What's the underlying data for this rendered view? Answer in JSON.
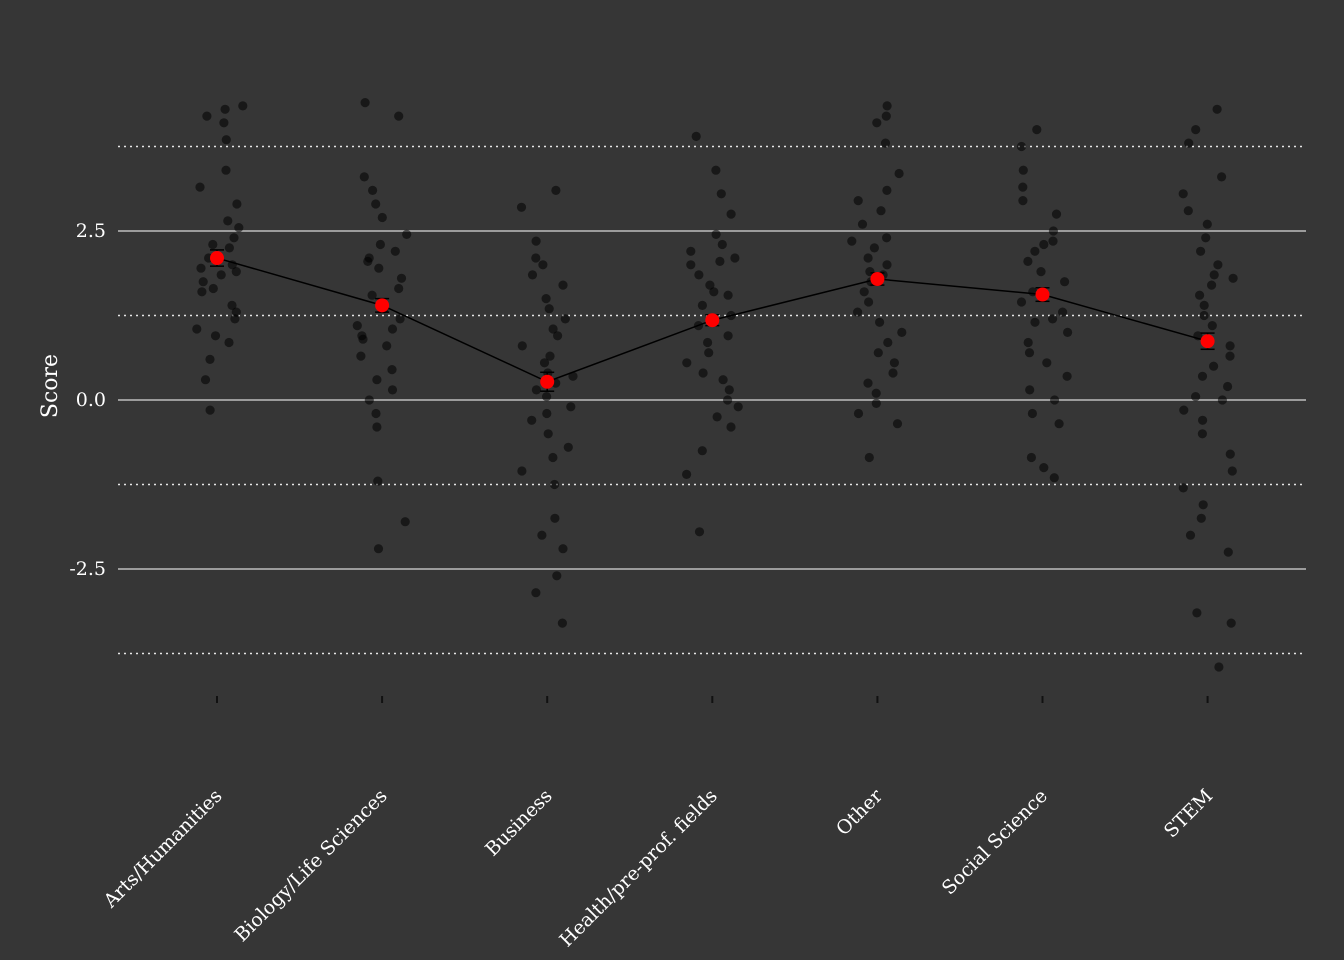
{
  "chart_data": {
    "type": "scatter",
    "title": "",
    "xlabel": "",
    "ylabel": "Score",
    "ylim": [
      -4.45,
      4.4
    ],
    "y_ticks": [
      -2.5,
      0.0,
      2.5
    ],
    "y_tick_labels": [
      "-2.5",
      "0.0",
      "2.5"
    ],
    "y_minor_gridlines": [
      -3.75,
      -1.25,
      1.25,
      3.75
    ],
    "grid": true,
    "legend": "none",
    "categories": [
      "Arts/Humanities",
      "Biology/Life Sciences",
      "Business",
      "Health/pre-prof. fields",
      "Other",
      "Social Science",
      "STEM"
    ],
    "series": [
      {
        "role": "mean",
        "values": [
          2.1,
          1.4,
          0.27,
          1.18,
          1.79,
          1.56,
          0.87
        ],
        "error": [
          0.12,
          0.1,
          0.14,
          0.08,
          0.09,
          0.1,
          0.12
        ]
      },
      {
        "role": "observations",
        "points": [
          [
            0,
            4.3
          ],
          [
            0,
            4.2
          ],
          [
            0,
            4.1
          ],
          [
            0,
            4.35
          ],
          [
            0,
            3.85
          ],
          [
            0,
            3.4
          ],
          [
            0,
            3.15
          ],
          [
            0,
            2.9
          ],
          [
            0,
            2.65
          ],
          [
            0,
            2.4
          ],
          [
            0,
            2.25
          ],
          [
            0,
            2.1
          ],
          [
            0,
            2.0
          ],
          [
            0,
            1.95
          ],
          [
            0,
            1.85
          ],
          [
            0,
            1.75
          ],
          [
            0,
            1.6
          ],
          [
            0,
            1.4
          ],
          [
            0,
            1.3
          ],
          [
            0,
            1.2
          ],
          [
            0,
            1.05
          ],
          [
            0,
            0.95
          ],
          [
            0,
            0.85
          ],
          [
            0,
            0.6
          ],
          [
            0,
            0.3
          ],
          [
            0,
            -0.15
          ],
          [
            0,
            2.55
          ],
          [
            0,
            1.9
          ],
          [
            0,
            2.3
          ],
          [
            0,
            1.65
          ],
          [
            1,
            4.2
          ],
          [
            1,
            4.4
          ],
          [
            1,
            3.3
          ],
          [
            1,
            3.1
          ],
          [
            1,
            2.9
          ],
          [
            1,
            2.7
          ],
          [
            1,
            2.45
          ],
          [
            1,
            2.3
          ],
          [
            1,
            2.2
          ],
          [
            1,
            2.05
          ],
          [
            1,
            1.95
          ],
          [
            1,
            1.8
          ],
          [
            1,
            1.65
          ],
          [
            1,
            1.55
          ],
          [
            1,
            1.35
          ],
          [
            1,
            1.2
          ],
          [
            1,
            1.05
          ],
          [
            1,
            0.95
          ],
          [
            1,
            0.8
          ],
          [
            1,
            0.65
          ],
          [
            1,
            0.45
          ],
          [
            1,
            0.3
          ],
          [
            1,
            0.15
          ],
          [
            1,
            0.0
          ],
          [
            1,
            -0.2
          ],
          [
            1,
            -0.4
          ],
          [
            1,
            -1.2
          ],
          [
            1,
            -1.8
          ],
          [
            1,
            -2.2
          ],
          [
            1,
            1.1
          ],
          [
            1,
            2.1
          ],
          [
            1,
            0.9
          ],
          [
            2,
            3.1
          ],
          [
            2,
            2.85
          ],
          [
            2,
            2.35
          ],
          [
            2,
            2.1
          ],
          [
            2,
            2.0
          ],
          [
            2,
            1.85
          ],
          [
            2,
            1.7
          ],
          [
            2,
            1.5
          ],
          [
            2,
            1.35
          ],
          [
            2,
            1.2
          ],
          [
            2,
            1.05
          ],
          [
            2,
            0.95
          ],
          [
            2,
            0.8
          ],
          [
            2,
            0.65
          ],
          [
            2,
            0.55
          ],
          [
            2,
            0.4
          ],
          [
            2,
            0.25
          ],
          [
            2,
            0.15
          ],
          [
            2,
            0.05
          ],
          [
            2,
            -0.1
          ],
          [
            2,
            -0.3
          ],
          [
            2,
            -0.5
          ],
          [
            2,
            -0.7
          ],
          [
            2,
            -0.85
          ],
          [
            2,
            -1.05
          ],
          [
            2,
            -1.25
          ],
          [
            2,
            -1.75
          ],
          [
            2,
            -2.0
          ],
          [
            2,
            -2.2
          ],
          [
            2,
            -2.6
          ],
          [
            2,
            -2.85
          ],
          [
            2,
            -3.3
          ],
          [
            2,
            0.35
          ],
          [
            2,
            -0.2
          ],
          [
            3,
            3.9
          ],
          [
            3,
            3.4
          ],
          [
            3,
            3.05
          ],
          [
            3,
            2.75
          ],
          [
            3,
            2.45
          ],
          [
            3,
            2.3
          ],
          [
            3,
            2.2
          ],
          [
            3,
            2.1
          ],
          [
            3,
            2.0
          ],
          [
            3,
            1.85
          ],
          [
            3,
            1.7
          ],
          [
            3,
            1.55
          ],
          [
            3,
            1.4
          ],
          [
            3,
            1.25
          ],
          [
            3,
            1.1
          ],
          [
            3,
            0.95
          ],
          [
            3,
            0.85
          ],
          [
            3,
            0.7
          ],
          [
            3,
            0.55
          ],
          [
            3,
            0.4
          ],
          [
            3,
            0.3
          ],
          [
            3,
            0.15
          ],
          [
            3,
            0.0
          ],
          [
            3,
            -0.1
          ],
          [
            3,
            -0.25
          ],
          [
            3,
            -0.4
          ],
          [
            3,
            -0.75
          ],
          [
            3,
            -1.1
          ],
          [
            3,
            -1.95
          ],
          [
            3,
            1.6
          ],
          [
            3,
            2.05
          ],
          [
            4,
            4.35
          ],
          [
            4,
            4.2
          ],
          [
            4,
            4.1
          ],
          [
            4,
            3.8
          ],
          [
            4,
            3.35
          ],
          [
            4,
            3.1
          ],
          [
            4,
            2.95
          ],
          [
            4,
            2.8
          ],
          [
            4,
            2.6
          ],
          [
            4,
            2.4
          ],
          [
            4,
            2.25
          ],
          [
            4,
            2.1
          ],
          [
            4,
            2.0
          ],
          [
            4,
            1.9
          ],
          [
            4,
            1.75
          ],
          [
            4,
            1.6
          ],
          [
            4,
            1.45
          ],
          [
            4,
            1.3
          ],
          [
            4,
            1.15
          ],
          [
            4,
            1.0
          ],
          [
            4,
            0.85
          ],
          [
            4,
            0.7
          ],
          [
            4,
            0.55
          ],
          [
            4,
            0.4
          ],
          [
            4,
            0.25
          ],
          [
            4,
            0.1
          ],
          [
            4,
            -0.05
          ],
          [
            4,
            -0.2
          ],
          [
            4,
            -0.35
          ],
          [
            4,
            -0.85
          ],
          [
            4,
            2.35
          ],
          [
            4,
            1.85
          ],
          [
            5,
            4.0
          ],
          [
            5,
            3.75
          ],
          [
            5,
            3.4
          ],
          [
            5,
            3.15
          ],
          [
            5,
            2.95
          ],
          [
            5,
            2.75
          ],
          [
            5,
            2.5
          ],
          [
            5,
            2.35
          ],
          [
            5,
            2.2
          ],
          [
            5,
            2.05
          ],
          [
            5,
            1.9
          ],
          [
            5,
            1.75
          ],
          [
            5,
            1.6
          ],
          [
            5,
            1.45
          ],
          [
            5,
            1.3
          ],
          [
            5,
            1.15
          ],
          [
            5,
            1.0
          ],
          [
            5,
            0.85
          ],
          [
            5,
            0.7
          ],
          [
            5,
            0.55
          ],
          [
            5,
            0.35
          ],
          [
            5,
            0.15
          ],
          [
            5,
            0.0
          ],
          [
            5,
            -0.2
          ],
          [
            5,
            -0.35
          ],
          [
            5,
            -0.85
          ],
          [
            5,
            -1.0
          ],
          [
            5,
            -1.15
          ],
          [
            5,
            2.3
          ],
          [
            5,
            1.2
          ],
          [
            6,
            4.3
          ],
          [
            6,
            4.0
          ],
          [
            6,
            3.8
          ],
          [
            6,
            3.3
          ],
          [
            6,
            3.05
          ],
          [
            6,
            2.8
          ],
          [
            6,
            2.6
          ],
          [
            6,
            2.4
          ],
          [
            6,
            2.2
          ],
          [
            6,
            2.0
          ],
          [
            6,
            1.85
          ],
          [
            6,
            1.7
          ],
          [
            6,
            1.55
          ],
          [
            6,
            1.4
          ],
          [
            6,
            1.25
          ],
          [
            6,
            1.1
          ],
          [
            6,
            0.95
          ],
          [
            6,
            0.8
          ],
          [
            6,
            0.65
          ],
          [
            6,
            0.5
          ],
          [
            6,
            0.35
          ],
          [
            6,
            0.2
          ],
          [
            6,
            0.05
          ],
          [
            6,
            -0.15
          ],
          [
            6,
            -0.3
          ],
          [
            6,
            -0.5
          ],
          [
            6,
            -0.8
          ],
          [
            6,
            -1.05
          ],
          [
            6,
            -1.3
          ],
          [
            6,
            -1.55
          ],
          [
            6,
            -1.75
          ],
          [
            6,
            -2.0
          ],
          [
            6,
            -2.25
          ],
          [
            6,
            -3.15
          ],
          [
            6,
            -3.3
          ],
          [
            6,
            -3.95
          ],
          [
            6,
            1.8
          ],
          [
            6,
            0.0
          ]
        ]
      }
    ]
  }
}
